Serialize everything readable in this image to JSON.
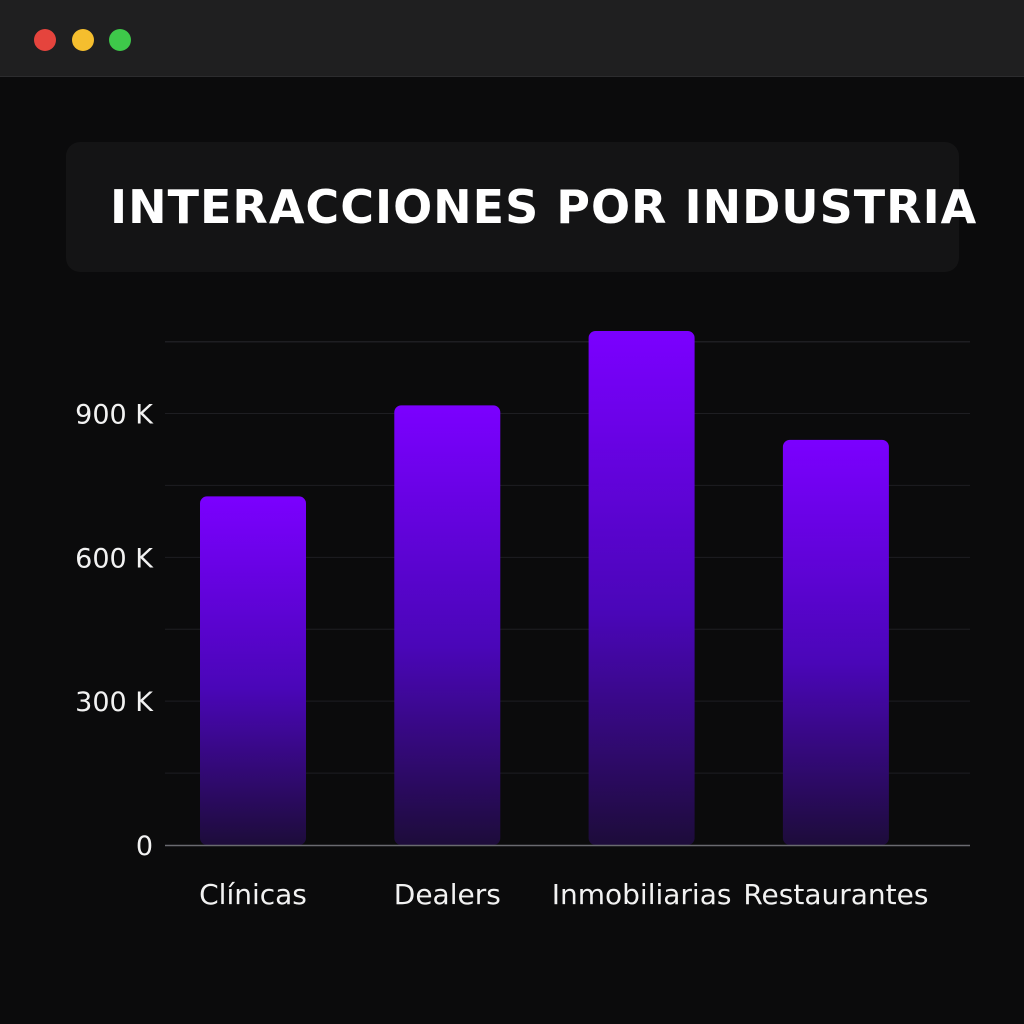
{
  "window": {
    "controls": [
      {
        "name": "close-button",
        "color": "#e5443d"
      },
      {
        "name": "minimize-button",
        "color": "#f5be2e"
      },
      {
        "name": "zoom-button",
        "color": "#3ec84a"
      }
    ]
  },
  "chart_data": {
    "type": "bar",
    "title": "INTERACCIONES POR INDUSTRIA",
    "categories": [
      "Clínicas",
      "Dealers",
      "Inmobiliarias",
      "Restaurantes"
    ],
    "values": [
      727000,
      917000,
      1072000,
      845000
    ],
    "ylim": [
      0,
      1072000
    ],
    "yticks": [
      0,
      300000,
      600000,
      900000
    ],
    "ytick_labels": [
      "0",
      "300 K",
      "600 K",
      "900 K"
    ],
    "grid": true,
    "colors": {
      "bar_top": "#7b00ff",
      "bar_mid": "#4a06b8",
      "bar_bottom": "#1d0c3a",
      "grid": "#1e1e22",
      "axis": "#6a6a70"
    }
  }
}
